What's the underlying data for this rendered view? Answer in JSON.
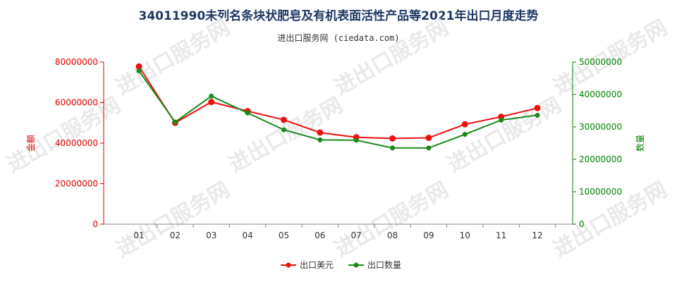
{
  "chart_data": {
    "type": "line",
    "title": "34011990未列名条块状肥皂及有机表面活性产品等2021年出口月度走势",
    "subtitle": "进出口服务网 (ciedata.com)",
    "watermark": "进出口服务网",
    "categories": [
      "01",
      "02",
      "03",
      "04",
      "05",
      "06",
      "07",
      "08",
      "09",
      "10",
      "11",
      "12"
    ],
    "y_left": {
      "label": "金额",
      "ticks": [
        "0",
        "20000000",
        "40000000",
        "60000000",
        "80000000"
      ],
      "lim": [
        0,
        80000000
      ],
      "color": "#dd0000"
    },
    "y_right": {
      "label": "数量",
      "ticks": [
        "0",
        "10000000",
        "20000000",
        "30000000",
        "40000000",
        "50000000"
      ],
      "lim": [
        0,
        50000000
      ],
      "color": "#008000"
    },
    "series": [
      {
        "name": "出口美元",
        "axis": "left",
        "color": "#ee1111",
        "values": [
          77800000,
          50000000,
          60300000,
          55800000,
          51500000,
          45200000,
          42900000,
          42300000,
          42600000,
          49300000,
          53000000,
          57300000
        ]
      },
      {
        "name": "出口数量",
        "axis": "right",
        "color": "#1a8a1a",
        "values": [
          47300000,
          31500000,
          39500000,
          34300000,
          29100000,
          26000000,
          25900000,
          23500000,
          23500000,
          27700000,
          32100000,
          33600000
        ]
      }
    ],
    "legend_position": "bottom-center",
    "grid": false
  }
}
